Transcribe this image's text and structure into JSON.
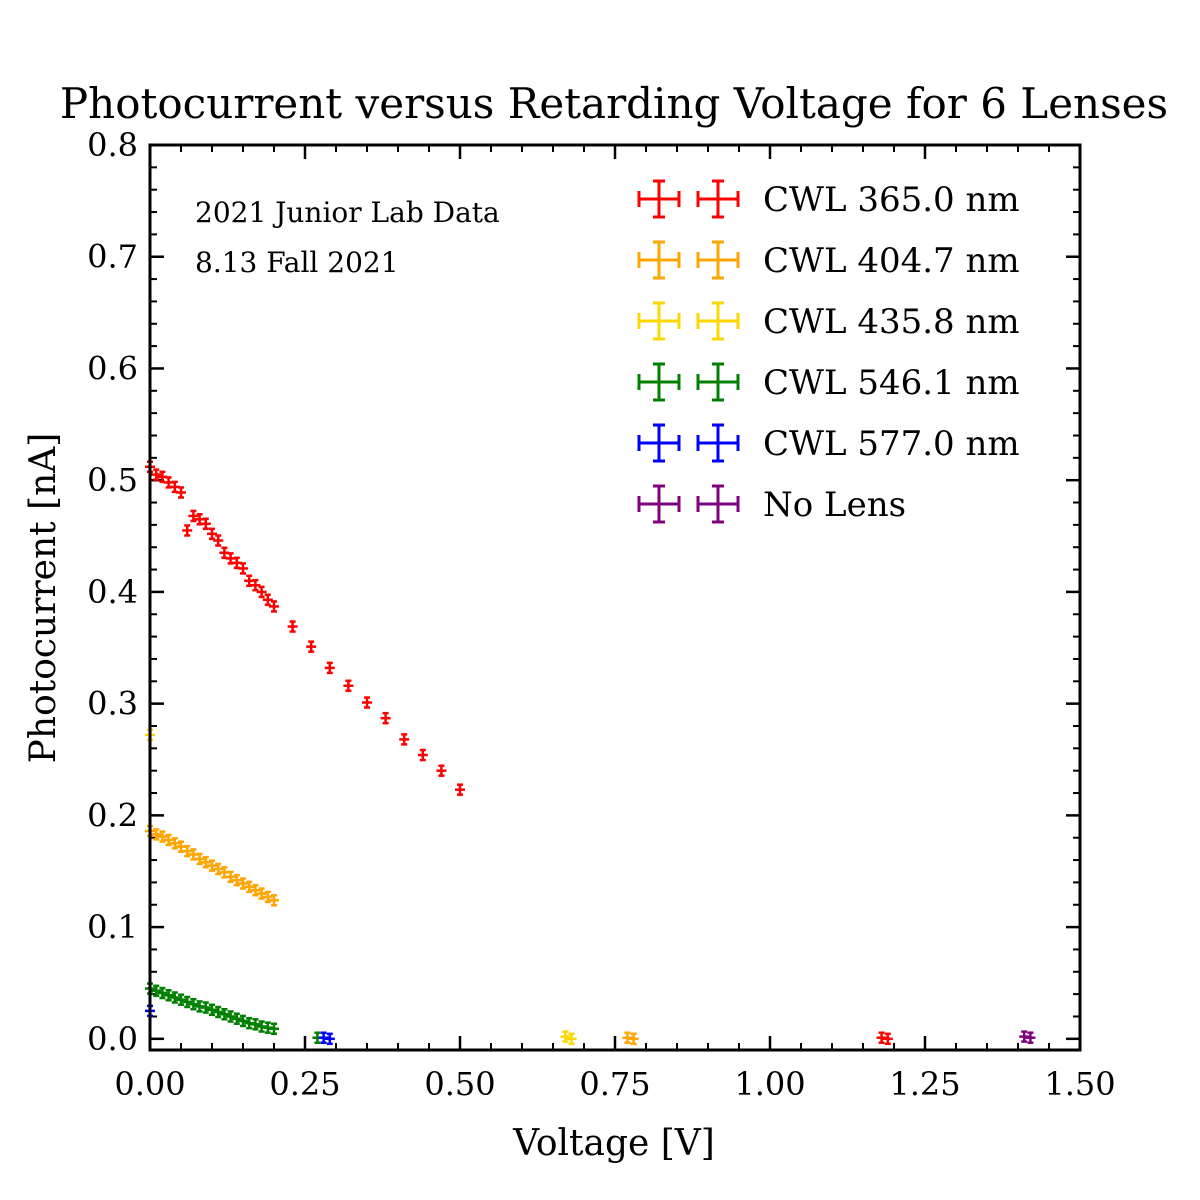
{
  "chart_data": {
    "type": "scatter",
    "title": "Photocurrent versus Retarding Voltage for 6 Lenses",
    "xlabel": "Voltage [V]",
    "ylabel": "Photocurrent [nA]",
    "xlim": [
      0,
      1.5
    ],
    "ylim": [
      -0.01,
      0.8
    ],
    "xticks": [
      0,
      0.25,
      0.5,
      0.75,
      1.0,
      1.25,
      1.5
    ],
    "xtick_labels": [
      "0.00",
      "0.25",
      "0.50",
      "0.75",
      "1.00",
      "1.25",
      "1.50"
    ],
    "yticks": [
      0,
      0.1,
      0.2,
      0.3,
      0.4,
      0.5,
      0.6,
      0.7,
      0.8
    ],
    "ytick_labels": [
      "0.0",
      "0.1",
      "0.2",
      "0.3",
      "0.4",
      "0.5",
      "0.6",
      "0.7",
      "0.8"
    ],
    "grid": false,
    "legend_position": "top-right",
    "annotations": [
      "2021 Junior Lab Data",
      "8.13 Fall 2021"
    ],
    "series": [
      {
        "name": "CWL 365.0 nm",
        "color": "#ff0000",
        "points": [
          [
            0.0,
            0.512
          ],
          [
            0.01,
            0.505
          ],
          [
            0.02,
            0.503
          ],
          [
            0.03,
            0.498
          ],
          [
            0.04,
            0.494
          ],
          [
            0.05,
            0.489
          ],
          [
            0.06,
            0.455
          ],
          [
            0.07,
            0.468
          ],
          [
            0.08,
            0.465
          ],
          [
            0.09,
            0.461
          ],
          [
            0.1,
            0.452
          ],
          [
            0.11,
            0.446
          ],
          [
            0.12,
            0.435
          ],
          [
            0.13,
            0.43
          ],
          [
            0.14,
            0.426
          ],
          [
            0.15,
            0.421
          ],
          [
            0.16,
            0.41
          ],
          [
            0.17,
            0.406
          ],
          [
            0.18,
            0.4
          ],
          [
            0.19,
            0.393
          ],
          [
            0.2,
            0.387
          ],
          [
            0.23,
            0.369
          ],
          [
            0.26,
            0.351
          ],
          [
            0.29,
            0.332
          ],
          [
            0.32,
            0.316
          ],
          [
            0.35,
            0.301
          ],
          [
            0.38,
            0.287
          ],
          [
            0.41,
            0.268
          ],
          [
            0.44,
            0.254
          ],
          [
            0.47,
            0.24
          ],
          [
            0.5,
            0.223
          ],
          [
            1.18,
            0.001
          ],
          [
            1.19,
            0.0
          ]
        ]
      },
      {
        "name": "CWL 404.7 nm",
        "color": "#ffa500",
        "points": [
          [
            0.0,
            0.186
          ],
          [
            0.01,
            0.183
          ],
          [
            0.02,
            0.181
          ],
          [
            0.03,
            0.178
          ],
          [
            0.04,
            0.175
          ],
          [
            0.05,
            0.172
          ],
          [
            0.06,
            0.168
          ],
          [
            0.07,
            0.165
          ],
          [
            0.08,
            0.161
          ],
          [
            0.09,
            0.158
          ],
          [
            0.1,
            0.155
          ],
          [
            0.11,
            0.152
          ],
          [
            0.12,
            0.149
          ],
          [
            0.13,
            0.145
          ],
          [
            0.14,
            0.142
          ],
          [
            0.15,
            0.139
          ],
          [
            0.16,
            0.136
          ],
          [
            0.17,
            0.133
          ],
          [
            0.18,
            0.13
          ],
          [
            0.19,
            0.127
          ],
          [
            0.2,
            0.124
          ],
          [
            0.77,
            0.001
          ],
          [
            0.78,
            0.0
          ]
        ]
      },
      {
        "name": "CWL 435.8 nm",
        "color": "#ffd700",
        "points": [
          [
            0.0,
            0.272
          ],
          [
            0.67,
            0.002
          ],
          [
            0.68,
            0.0
          ]
        ]
      },
      {
        "name": "CWL 546.1 nm",
        "color": "#008000",
        "points": [
          [
            0.0,
            0.045
          ],
          [
            0.01,
            0.043
          ],
          [
            0.02,
            0.041
          ],
          [
            0.03,
            0.039
          ],
          [
            0.04,
            0.037
          ],
          [
            0.05,
            0.035
          ],
          [
            0.06,
            0.033
          ],
          [
            0.07,
            0.031
          ],
          [
            0.08,
            0.029
          ],
          [
            0.09,
            0.028
          ],
          [
            0.1,
            0.026
          ],
          [
            0.11,
            0.024
          ],
          [
            0.12,
            0.022
          ],
          [
            0.13,
            0.02
          ],
          [
            0.14,
            0.018
          ],
          [
            0.15,
            0.016
          ],
          [
            0.16,
            0.014
          ],
          [
            0.17,
            0.013
          ],
          [
            0.18,
            0.011
          ],
          [
            0.19,
            0.01
          ],
          [
            0.2,
            0.009
          ],
          [
            0.27,
            0.001
          ]
        ]
      },
      {
        "name": "CWL 577.0 nm",
        "color": "#0000ff",
        "points": [
          [
            0.0,
            0.025
          ],
          [
            0.28,
            0.001
          ],
          [
            0.29,
            0.0
          ]
        ]
      },
      {
        "name": "No Lens",
        "color": "#800080",
        "points": [
          [
            1.41,
            0.002
          ],
          [
            1.42,
            0.001
          ]
        ]
      }
    ]
  }
}
